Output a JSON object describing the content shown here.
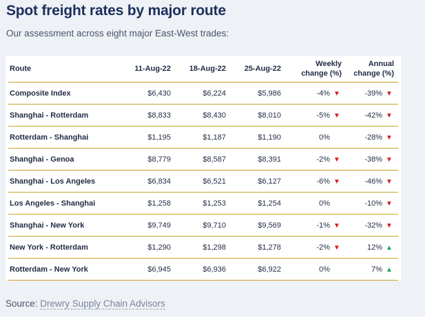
{
  "title": "Spot freight rates by major route",
  "subtitle": "Our assessment across eight major East-West trades:",
  "source_label": "Source:",
  "source_link": "Drewry Supply Chain Advisors",
  "colors": {
    "down": "#d7191c",
    "up": "#16a34a",
    "rule": "#c9a227",
    "title": "#1b2f5c"
  },
  "chart_data": {
    "type": "table",
    "columns": {
      "route": "Route",
      "d1": "11-Aug-22",
      "d2": "18-Aug-22",
      "d3": "25-Aug-22",
      "weekly_l1": "Weekly",
      "weekly_l2": "change (%)",
      "annual_l1": "Annual",
      "annual_l2": "change (%)"
    },
    "rows": [
      {
        "route": "Composite Index",
        "d1": "$6,430",
        "d2": "$6,224",
        "d3": "$5,986",
        "weekly": "-4%",
        "weekly_dir": "down",
        "annual": "-39%",
        "annual_dir": "down"
      },
      {
        "route": "Shanghai - Rotterdam",
        "d1": "$8,833",
        "d2": "$8,430",
        "d3": "$8,010",
        "weekly": "-5%",
        "weekly_dir": "down",
        "annual": "-42%",
        "annual_dir": "down"
      },
      {
        "route": "Rotterdam - Shanghai",
        "d1": "$1,195",
        "d2": "$1,187",
        "d3": "$1,190",
        "weekly": "0%",
        "weekly_dir": "none",
        "annual": "-28%",
        "annual_dir": "down"
      },
      {
        "route": "Shanghai - Genoa",
        "d1": "$8,779",
        "d2": "$8,587",
        "d3": "$8,391",
        "weekly": "-2%",
        "weekly_dir": "down",
        "annual": "-38%",
        "annual_dir": "down"
      },
      {
        "route": "Shanghai - Los Angeles",
        "d1": "$6,834",
        "d2": "$6,521",
        "d3": "$6,127",
        "weekly": "-6%",
        "weekly_dir": "down",
        "annual": "-46%",
        "annual_dir": "down"
      },
      {
        "route": "Los Angeles - Shanghai",
        "d1": "$1,258",
        "d2": "$1,253",
        "d3": "$1,254",
        "weekly": "0%",
        "weekly_dir": "none",
        "annual": "-10%",
        "annual_dir": "down"
      },
      {
        "route": "Shanghai - New York",
        "d1": "$9,749",
        "d2": "$9,710",
        "d3": "$9,569",
        "weekly": "-1%",
        "weekly_dir": "down",
        "annual": "-32%",
        "annual_dir": "down"
      },
      {
        "route": "New York - Rotterdam",
        "d1": "$1,290",
        "d2": "$1,298",
        "d3": "$1,278",
        "weekly": "-2%",
        "weekly_dir": "down",
        "annual": "12%",
        "annual_dir": "up"
      },
      {
        "route": "Rotterdam - New York",
        "d1": "$6,945",
        "d2": "$6,936",
        "d3": "$6,922",
        "weekly": "0%",
        "weekly_dir": "none",
        "annual": "7%",
        "annual_dir": "up"
      }
    ]
  }
}
